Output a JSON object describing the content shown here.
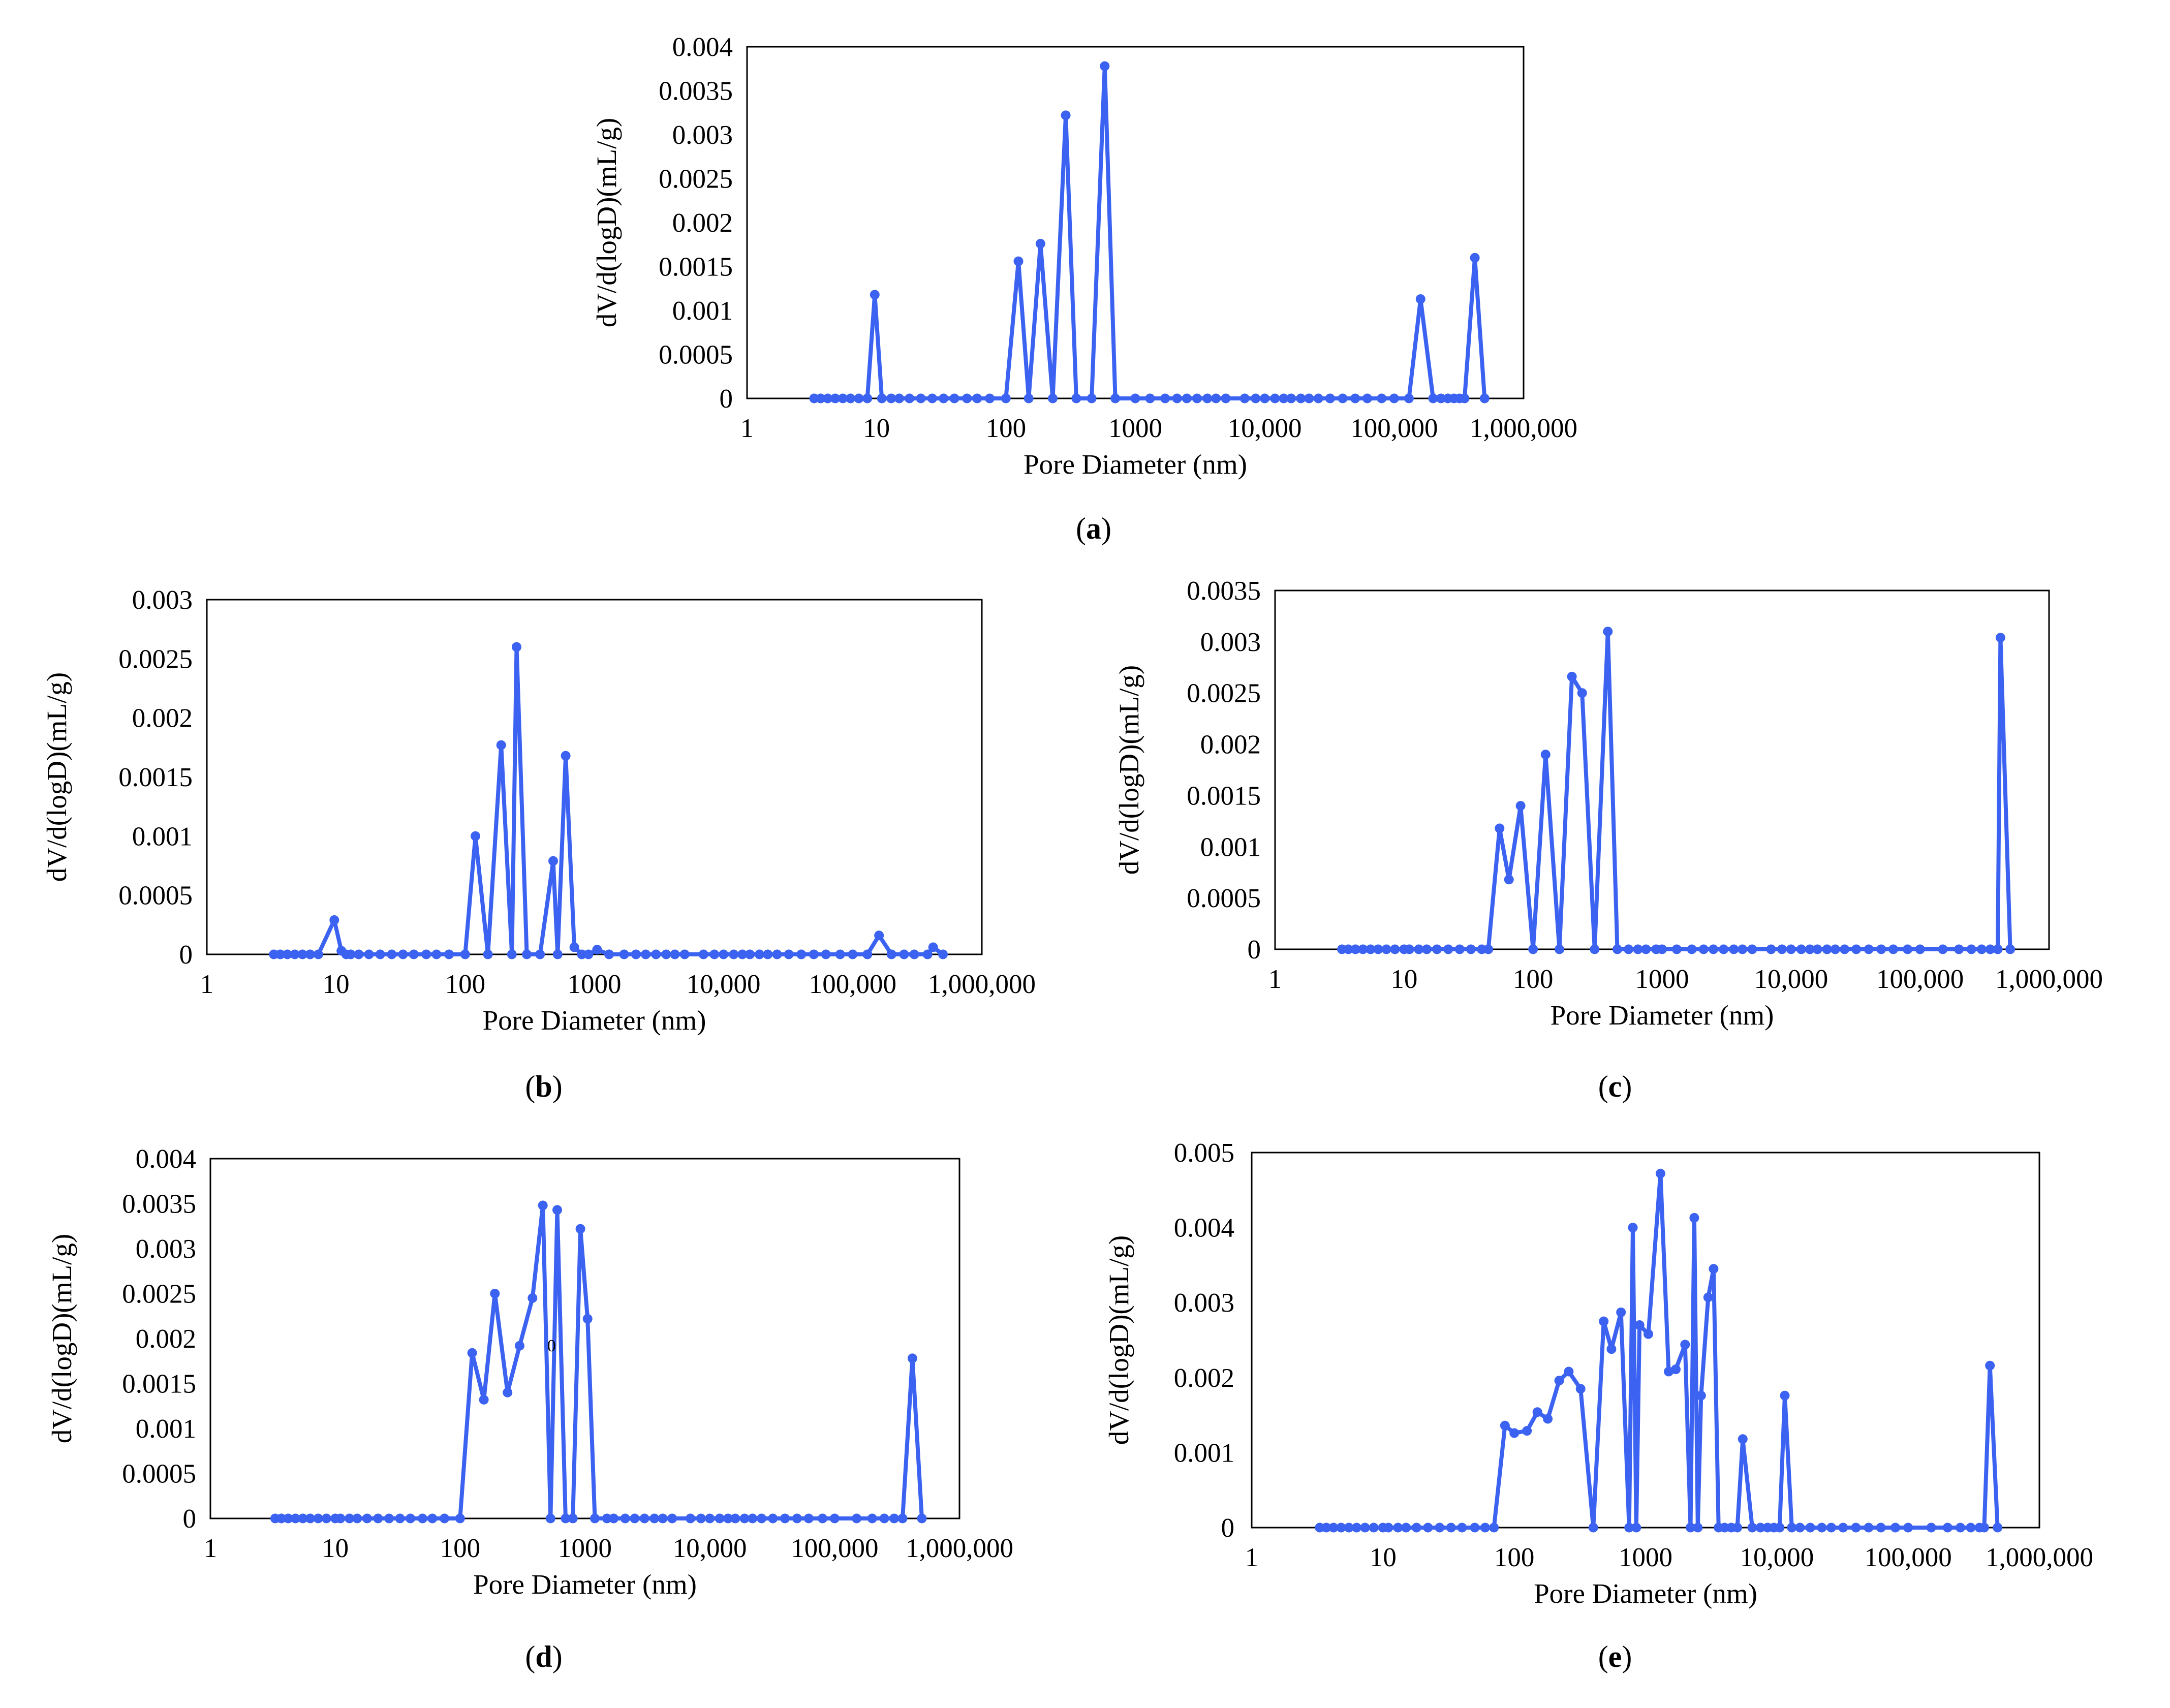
{
  "figure": {
    "series_color": "#3b62f0",
    "axis_color": "#000000"
  },
  "chart_data": [
    {
      "id": "a",
      "type": "line",
      "label": "a",
      "xlabel": "Pore Diameter  (nm)",
      "ylabel": "dV/d(logD)(mL/g)",
      "xscale": "log",
      "xlim": [
        1,
        1000000
      ],
      "ylim": [
        0,
        0.004
      ],
      "x_ticks": [
        "1",
        "10",
        "100",
        "1000",
        "10,000",
        "100,000",
        "1,000,000"
      ],
      "y_ticks": [
        "0",
        "0.0005",
        "0.001",
        "0.0015",
        "0.002",
        "0.0025",
        "0.003",
        "0.0035",
        "0.004"
      ],
      "points": [
        [
          3.3,
          0
        ],
        [
          3.7,
          0
        ],
        [
          4.2,
          0
        ],
        [
          4.8,
          0
        ],
        [
          5.5,
          0
        ],
        [
          6.3,
          0
        ],
        [
          7.3,
          0
        ],
        [
          8.5,
          0
        ],
        [
          9.7,
          0.00118
        ],
        [
          11,
          0
        ],
        [
          13,
          0
        ],
        [
          15,
          0
        ],
        [
          18,
          0
        ],
        [
          22,
          0
        ],
        [
          27,
          0
        ],
        [
          33,
          0
        ],
        [
          40,
          0
        ],
        [
          50,
          0
        ],
        [
          60,
          0
        ],
        [
          75,
          0
        ],
        [
          100,
          0
        ],
        [
          125,
          0.00156
        ],
        [
          150,
          0
        ],
        [
          185,
          0.00176
        ],
        [
          230,
          0
        ],
        [
          290,
          0.00322
        ],
        [
          350,
          0
        ],
        [
          460,
          0
        ],
        [
          580,
          0.00378
        ],
        [
          700,
          0
        ],
        [
          1000,
          0
        ],
        [
          1300,
          0
        ],
        [
          1700,
          0
        ],
        [
          2100,
          0
        ],
        [
          2500,
          0
        ],
        [
          3000,
          0
        ],
        [
          3600,
          0
        ],
        [
          4200,
          0
        ],
        [
          5000,
          0
        ],
        [
          7000,
          0
        ],
        [
          8500,
          0
        ],
        [
          10000,
          0
        ],
        [
          12000,
          0
        ],
        [
          14000,
          0
        ],
        [
          16000,
          0
        ],
        [
          19000,
          0
        ],
        [
          22000,
          0
        ],
        [
          26000,
          0
        ],
        [
          32000,
          0
        ],
        [
          40000,
          0
        ],
        [
          50000,
          0
        ],
        [
          62000,
          0
        ],
        [
          80000,
          0
        ],
        [
          100000,
          0
        ],
        [
          130000,
          0
        ],
        [
          160000,
          0.00113
        ],
        [
          200000,
          0
        ],
        [
          230000,
          0
        ],
        [
          260000,
          0
        ],
        [
          290000,
          0
        ],
        [
          320000,
          0
        ],
        [
          350000,
          0
        ],
        [
          420000,
          0.0016
        ],
        [
          500000,
          0
        ]
      ]
    },
    {
      "id": "b",
      "type": "line",
      "label": "b",
      "xlabel": "Pore Diameter (nm)",
      "ylabel": "dV/d(logD)(mL/g)",
      "xscale": "log",
      "xlim": [
        1,
        1000000
      ],
      "ylim": [
        0,
        0.003
      ],
      "x_ticks": [
        "1",
        "10",
        "100",
        "1000",
        "10,000",
        "100,000",
        "1,000,000"
      ],
      "y_ticks": [
        "0",
        "0.0005",
        "0.001",
        "0.0015",
        "0.002",
        "0.0025",
        "0.003"
      ],
      "points": [
        [
          3.3,
          0
        ],
        [
          3.7,
          0
        ],
        [
          4.2,
          0
        ],
        [
          4.8,
          0
        ],
        [
          5.5,
          0
        ],
        [
          6.3,
          0
        ],
        [
          7.3,
          0
        ],
        [
          9.7,
          0.00029
        ],
        [
          11,
          3e-05
        ],
        [
          12,
          0
        ],
        [
          13,
          0
        ],
        [
          15,
          0
        ],
        [
          18,
          0
        ],
        [
          22,
          0
        ],
        [
          27,
          0
        ],
        [
          33,
          0
        ],
        [
          40,
          0
        ],
        [
          50,
          0
        ],
        [
          60,
          0
        ],
        [
          75,
          0
        ],
        [
          100,
          0
        ],
        [
          120,
          0.001
        ],
        [
          150,
          0
        ],
        [
          190,
          0.00177
        ],
        [
          230,
          0
        ],
        [
          250,
          0.0026
        ],
        [
          300,
          0
        ],
        [
          380,
          0
        ],
        [
          480,
          0.00079
        ],
        [
          520,
          0
        ],
        [
          600,
          0.00168
        ],
        [
          700,
          6e-05
        ],
        [
          800,
          0
        ],
        [
          900,
          0
        ],
        [
          1050,
          4e-05
        ],
        [
          1300,
          0
        ],
        [
          1700,
          0
        ],
        [
          2100,
          0
        ],
        [
          2500,
          0
        ],
        [
          3000,
          0
        ],
        [
          3600,
          0
        ],
        [
          4200,
          0
        ],
        [
          5000,
          0
        ],
        [
          7000,
          0
        ],
        [
          8500,
          0
        ],
        [
          10000,
          0
        ],
        [
          12000,
          0
        ],
        [
          14000,
          0
        ],
        [
          16000,
          0
        ],
        [
          19000,
          0
        ],
        [
          22000,
          0
        ],
        [
          26000,
          0
        ],
        [
          32000,
          0
        ],
        [
          40000,
          0
        ],
        [
          50000,
          0
        ],
        [
          62000,
          0
        ],
        [
          80000,
          0
        ],
        [
          100000,
          0
        ],
        [
          130000,
          0
        ],
        [
          160000,
          0.00016
        ],
        [
          200000,
          0
        ],
        [
          250000,
          0
        ],
        [
          300000,
          0
        ],
        [
          380000,
          0
        ],
        [
          420000,
          6e-05
        ],
        [
          500000,
          0
        ]
      ]
    },
    {
      "id": "c",
      "type": "line",
      "label": "c",
      "xlabel": "Pore Diameter  (nm)",
      "ylabel": "dV/d(logD)(mL/g)",
      "xscale": "log",
      "xlim": [
        1,
        1000000
      ],
      "ylim": [
        0,
        0.0035
      ],
      "x_ticks": [
        "1",
        "10",
        "100",
        "1000",
        "10,000",
        "100,000",
        "1,000,000"
      ],
      "y_ticks": [
        "0",
        "0.0005",
        "0.001",
        "0.0015",
        "0.002",
        "0.0025",
        "0.003",
        "0.0035"
      ],
      "points": [
        [
          3.3,
          0
        ],
        [
          3.7,
          0
        ],
        [
          4.2,
          0
        ],
        [
          4.8,
          0
        ],
        [
          5.5,
          0
        ],
        [
          6.3,
          0
        ],
        [
          7.3,
          0
        ],
        [
          8.5,
          0
        ],
        [
          10,
          0
        ],
        [
          11,
          0
        ],
        [
          13,
          0
        ],
        [
          15,
          0
        ],
        [
          18,
          0
        ],
        [
          22,
          0
        ],
        [
          27,
          0
        ],
        [
          33,
          0
        ],
        [
          40,
          0
        ],
        [
          45,
          0
        ],
        [
          55,
          0.00118
        ],
        [
          65,
          0.00068
        ],
        [
          80,
          0.0014
        ],
        [
          100,
          0
        ],
        [
          125,
          0.0019
        ],
        [
          160,
          0
        ],
        [
          200,
          0.00266
        ],
        [
          240,
          0.0025
        ],
        [
          300,
          0
        ],
        [
          380,
          0.0031
        ],
        [
          450,
          0
        ],
        [
          550,
          0
        ],
        [
          650,
          0
        ],
        [
          750,
          0
        ],
        [
          900,
          0
        ],
        [
          1000,
          0
        ],
        [
          1300,
          0
        ],
        [
          1700,
          0
        ],
        [
          2100,
          0
        ],
        [
          2500,
          0
        ],
        [
          3000,
          0
        ],
        [
          3600,
          0
        ],
        [
          4200,
          0
        ],
        [
          5000,
          0
        ],
        [
          7000,
          0
        ],
        [
          8500,
          0
        ],
        [
          10000,
          0
        ],
        [
          12000,
          0
        ],
        [
          14000,
          0
        ],
        [
          16000,
          0
        ],
        [
          19000,
          0
        ],
        [
          22000,
          0
        ],
        [
          26000,
          0
        ],
        [
          32000,
          0
        ],
        [
          40000,
          0
        ],
        [
          50000,
          0
        ],
        [
          62000,
          0
        ],
        [
          80000,
          0
        ],
        [
          100000,
          0
        ],
        [
          150000,
          0
        ],
        [
          200000,
          0
        ],
        [
          250000,
          0
        ],
        [
          300000,
          0
        ],
        [
          350000,
          0
        ],
        [
          400000,
          0
        ],
        [
          420000,
          0.00304
        ],
        [
          500000,
          0
        ]
      ]
    },
    {
      "id": "d",
      "type": "line",
      "label": "d",
      "xlabel": "Pore Diameter  (nm)",
      "ylabel": "dV/d(logD)(mL/g)",
      "xscale": "log",
      "xlim": [
        1,
        1000000
      ],
      "ylim": [
        0,
        0.004
      ],
      "x_ticks": [
        "1",
        "10",
        "100",
        "1000",
        "10,000",
        "100,000",
        "1,000,000"
      ],
      "y_ticks": [
        "0",
        "0.0005",
        "0.001",
        "0.0015",
        "0.002",
        "0.0025",
        "0.003",
        "0.0035",
        "0.004"
      ],
      "annotation": "0",
      "points": [
        [
          3.3,
          0
        ],
        [
          3.7,
          0
        ],
        [
          4.2,
          0
        ],
        [
          4.8,
          0
        ],
        [
          5.5,
          0
        ],
        [
          6.3,
          0
        ],
        [
          7.3,
          0
        ],
        [
          8.5,
          0
        ],
        [
          10,
          0
        ],
        [
          11,
          0
        ],
        [
          13,
          0
        ],
        [
          15,
          0
        ],
        [
          18,
          0
        ],
        [
          22,
          0
        ],
        [
          27,
          0
        ],
        [
          33,
          0
        ],
        [
          40,
          0
        ],
        [
          50,
          0
        ],
        [
          60,
          0
        ],
        [
          75,
          0
        ],
        [
          100,
          0
        ],
        [
          125,
          0.00184
        ],
        [
          155,
          0.00132
        ],
        [
          190,
          0.0025
        ],
        [
          240,
          0.0014
        ],
        [
          300,
          0.00192
        ],
        [
          380,
          0.00245
        ],
        [
          460,
          0.00348
        ],
        [
          530,
          0
        ],
        [
          600,
          0.00343
        ],
        [
          700,
          0
        ],
        [
          800,
          0
        ],
        [
          920,
          0.00322
        ],
        [
          1050,
          0.00222
        ],
        [
          1200,
          0
        ],
        [
          1500,
          0
        ],
        [
          1700,
          0
        ],
        [
          2100,
          0
        ],
        [
          2500,
          0
        ],
        [
          3000,
          0
        ],
        [
          3600,
          0
        ],
        [
          4200,
          0
        ],
        [
          5000,
          0
        ],
        [
          7000,
          0
        ],
        [
          8500,
          0
        ],
        [
          10000,
          0
        ],
        [
          12000,
          0
        ],
        [
          14000,
          0
        ],
        [
          16000,
          0
        ],
        [
          19000,
          0
        ],
        [
          22000,
          0
        ],
        [
          26000,
          0
        ],
        [
          32000,
          0
        ],
        [
          40000,
          0
        ],
        [
          50000,
          0
        ],
        [
          62000,
          0
        ],
        [
          80000,
          0
        ],
        [
          100000,
          0
        ],
        [
          150000,
          0
        ],
        [
          200000,
          0
        ],
        [
          250000,
          0
        ],
        [
          300000,
          0
        ],
        [
          350000,
          0
        ],
        [
          420000,
          0.00178
        ],
        [
          500000,
          0
        ]
      ]
    },
    {
      "id": "e",
      "type": "line",
      "label": "e",
      "xlabel": "Pore Diameter  (nm)",
      "ylabel": "dV/d(logD)(mL/g)",
      "xscale": "log",
      "xlim": [
        1,
        1000000
      ],
      "ylim": [
        0,
        0.005
      ],
      "x_ticks": [
        "1",
        "10",
        "100",
        "1000",
        "10,000",
        "100,000",
        "1,000,000"
      ],
      "y_ticks": [
        "0",
        "0.001",
        "0.002",
        "0.003",
        "0.004",
        "0.005"
      ],
      "points": [
        [
          3.3,
          0
        ],
        [
          3.7,
          0
        ],
        [
          4.2,
          0
        ],
        [
          4.8,
          0
        ],
        [
          5.5,
          0
        ],
        [
          6.3,
          0
        ],
        [
          7.3,
          0
        ],
        [
          8.5,
          0
        ],
        [
          10,
          0
        ],
        [
          11,
          0
        ],
        [
          13,
          0
        ],
        [
          15,
          0
        ],
        [
          18,
          0
        ],
        [
          22,
          0
        ],
        [
          27,
          0
        ],
        [
          33,
          0
        ],
        [
          40,
          0
        ],
        [
          50,
          0
        ],
        [
          60,
          0
        ],
        [
          70,
          0
        ],
        [
          85,
          0.00136
        ],
        [
          100,
          0.00126
        ],
        [
          125,
          0.00129
        ],
        [
          150,
          0.00154
        ],
        [
          180,
          0.00145
        ],
        [
          220,
          0.00196
        ],
        [
          260,
          0.00208
        ],
        [
          320,
          0.00185
        ],
        [
          400,
          0
        ],
        [
          480,
          0.00275
        ],
        [
          550,
          0.00238
        ],
        [
          650,
          0.00287
        ],
        [
          750,
          0
        ],
        [
          800,
          0.004
        ],
        [
          850,
          0
        ],
        [
          900,
          0.0027
        ],
        [
          1050,
          0.00258
        ],
        [
          1300,
          0.00472
        ],
        [
          1500,
          0.00208
        ],
        [
          1700,
          0.00211
        ],
        [
          2000,
          0.00244
        ],
        [
          2200,
          0
        ],
        [
          2350,
          0.00413
        ],
        [
          2500,
          0
        ],
        [
          2650,
          0.00176
        ],
        [
          3000,
          0.00307
        ],
        [
          3300,
          0.00345
        ],
        [
          3600,
          0
        ],
        [
          4000,
          0
        ],
        [
          4500,
          0
        ],
        [
          5000,
          0
        ],
        [
          5500,
          0.00118
        ],
        [
          6500,
          0
        ],
        [
          7500,
          0
        ],
        [
          8500,
          0
        ],
        [
          9500,
          0
        ],
        [
          10500,
          0
        ],
        [
          11500,
          0.00176
        ],
        [
          13000,
          0
        ],
        [
          15000,
          0
        ],
        [
          18000,
          0
        ],
        [
          22000,
          0
        ],
        [
          26000,
          0
        ],
        [
          32000,
          0
        ],
        [
          40000,
          0
        ],
        [
          50000,
          0
        ],
        [
          62000,
          0
        ],
        [
          80000,
          0
        ],
        [
          100000,
          0
        ],
        [
          150000,
          0
        ],
        [
          200000,
          0
        ],
        [
          250000,
          0
        ],
        [
          300000,
          0
        ],
        [
          350000,
          0
        ],
        [
          380000,
          0
        ],
        [
          420000,
          0.00216
        ],
        [
          480000,
          0
        ]
      ]
    }
  ]
}
